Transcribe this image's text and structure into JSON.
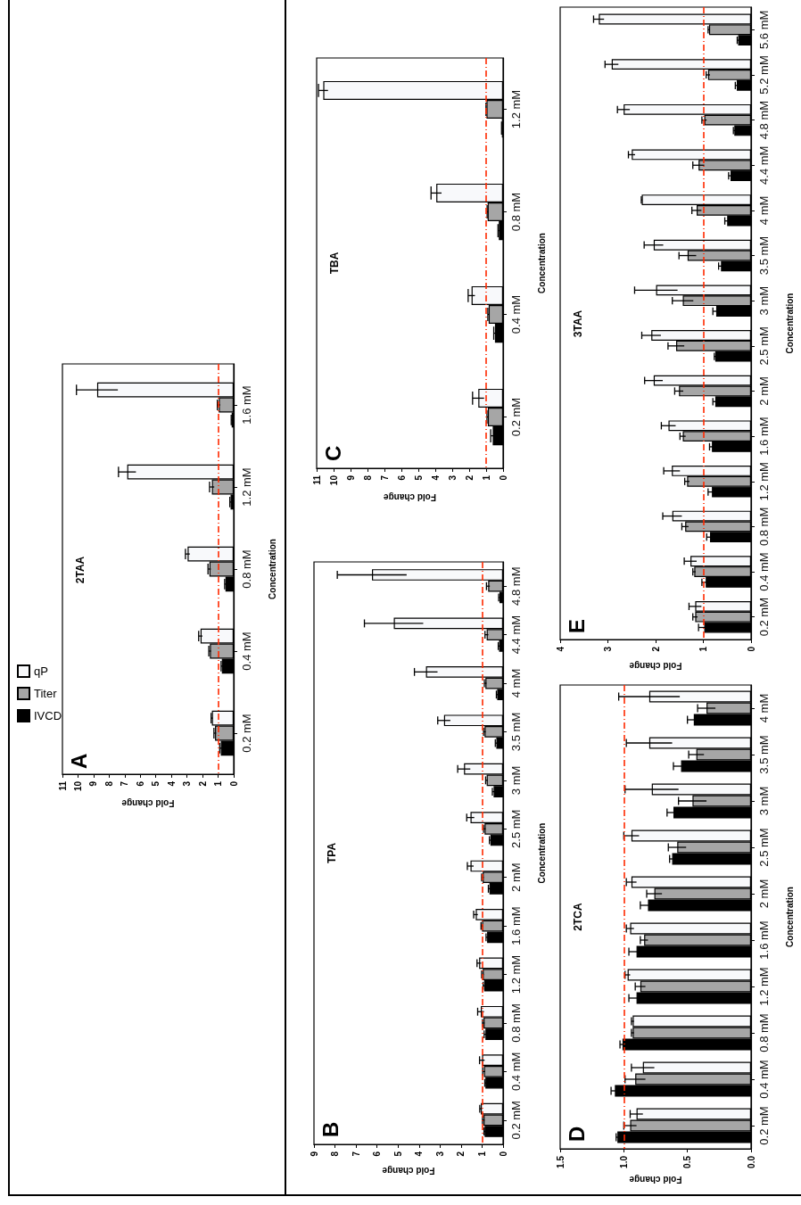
{
  "chart_data": [
    {
      "type": "bar",
      "orientation": "horizontal",
      "title": "A",
      "subtitle": "2TAA",
      "xlabel": "Fold change",
      "ylabel": "Concentration",
      "categories": [
        "1.6 mM",
        "1.2 mM",
        "0.8 mM",
        "0.4 mM",
        "0.2 mM"
      ],
      "series": [
        {
          "name": "qP",
          "color": "#f8f9fb",
          "values": [
            8.77,
            6.84,
            2.96,
            2.13,
            1.4
          ],
          "errors": [
            1.33,
            0.56,
            0.14,
            0.12,
            0.05
          ]
        },
        {
          "name": "Titer",
          "color": "#a6a6a6",
          "values": [
            0.96,
            1.4,
            1.56,
            1.53,
            1.2
          ],
          "errors": [
            0.09,
            0.15,
            0.09,
            0.07,
            0.07
          ]
        },
        {
          "name": "IVCD",
          "color": "#000000",
          "values": [
            0.13,
            0.2,
            0.53,
            0.76,
            0.83
          ],
          "errors": [
            0.03,
            0.05,
            0.05,
            0.05,
            0.07
          ]
        }
      ],
      "xlim": [
        11,
        0
      ],
      "xticks": [
        11,
        10,
        9,
        8,
        7,
        6,
        5,
        4,
        3,
        2,
        1,
        0
      ],
      "ref_lines": [
        {
          "axis": "x",
          "value": 1,
          "color": "#ff2a00",
          "line_style": "dashed"
        }
      ],
      "legend": "left",
      "grid": false
    },
    {
      "type": "bar",
      "orientation": "horizontal",
      "title": "B",
      "subtitle": "TPA",
      "xlabel": "Fold change",
      "ylabel": "Concentration",
      "categories": [
        "4.8 mM",
        "4.4 mM",
        "4 mM",
        "3.5 mM",
        "3 mM",
        "2.5 mM",
        "2 mM",
        "1.6 mM",
        "1.2 mM",
        "0.8 mM",
        "0.4 mM",
        "0.2 mM"
      ],
      "series": [
        {
          "color": "#f8f9fb",
          "values": [
            6.24,
            5.2,
            3.67,
            2.81,
            1.86,
            1.55,
            1.55,
            1.3,
            1.14,
            1.06,
            1.0,
            1.06
          ],
          "errors": [
            1.65,
            1.4,
            0.55,
            0.3,
            0.3,
            0.18,
            0.15,
            0.1,
            0.1,
            0.15,
            0.12,
            0.05
          ]
        },
        {
          "color": "#a6a6a6",
          "values": [
            0.71,
            0.78,
            0.84,
            0.88,
            0.78,
            0.88,
            0.97,
            1.0,
            0.97,
            0.93,
            0.91,
            0.93
          ],
          "errors": [
            0.08,
            0.08,
            0.05,
            0.05,
            0.05,
            0.05,
            0.05,
            0.05,
            0.05,
            0.05,
            0.06,
            0.05
          ]
        },
        {
          "color": "#000000",
          "values": [
            0.17,
            0.19,
            0.28,
            0.32,
            0.45,
            0.6,
            0.65,
            0.76,
            0.9,
            0.84,
            0.84,
            0.88
          ],
          "errors": [
            0.04,
            0.04,
            0.04,
            0.05,
            0.06,
            0.05,
            0.05,
            0.05,
            0.05,
            0.06,
            0.03,
            0.03
          ]
        }
      ],
      "xlim": [
        9,
        0
      ],
      "xticks": [
        9,
        8,
        7,
        6,
        5,
        4,
        3,
        2,
        1,
        0
      ],
      "ref_lines": [
        {
          "axis": "x",
          "value": 1,
          "color": "#ff2a00",
          "line_style": "dashed"
        }
      ],
      "grid": false
    },
    {
      "type": "bar",
      "orientation": "horizontal",
      "title": "C",
      "subtitle": "TBA",
      "xlabel": "Fold change",
      "ylabel": "Concentration",
      "categories": [
        "1.2 mM",
        "0.8 mM",
        "0.4 mM",
        "0.2 mM"
      ],
      "series": [
        {
          "color": "#f8f9fb",
          "values": [
            10.61,
            3.94,
            1.86,
            1.46
          ],
          "errors": [
            0.28,
            0.31,
            0.2,
            0.34
          ]
        },
        {
          "color": "#a6a6a6",
          "values": [
            0.98,
            0.91,
            0.85,
            0.9
          ],
          "errors": [
            0.03,
            0.03,
            0.05,
            0.05
          ]
        },
        {
          "color": "#000000",
          "values": [
            0.07,
            0.25,
            0.48,
            0.61
          ],
          "errors": [
            0.02,
            0.05,
            0.07,
            0.12
          ]
        }
      ],
      "xlim": [
        11,
        0
      ],
      "xticks": [
        11,
        10,
        9,
        8,
        7,
        6,
        5,
        4,
        3,
        2,
        1,
        0
      ],
      "ref_lines": [
        {
          "axis": "x",
          "value": 1,
          "color": "#ff2a00",
          "line_style": "dashed"
        }
      ],
      "grid": false
    },
    {
      "type": "bar",
      "orientation": "horizontal",
      "title": "D",
      "subtitle": "2TCA",
      "xlabel": "Fold change",
      "ylabel": "Concentration",
      "categories": [
        "4 mM",
        "3.5 mM",
        "3 mM",
        "2.5 mM",
        "2 mM",
        "1.6 mM",
        "1.2 mM",
        "0.8 mM",
        "0.4 mM",
        "0.2 mM"
      ],
      "series": [
        {
          "color": "#f8f9fb",
          "values": [
            0.8,
            0.8,
            0.78,
            0.94,
            0.94,
            0.95,
            0.97,
            0.93,
            0.85,
            0.9
          ],
          "errors": [
            0.24,
            0.18,
            0.21,
            0.06,
            0.04,
            0.03,
            0.02,
            0.01,
            0.09,
            0.05
          ]
        },
        {
          "color": "#a6a6a6",
          "values": [
            0.35,
            0.43,
            0.46,
            0.58,
            0.76,
            0.84,
            0.87,
            0.93,
            0.91,
            0.95
          ],
          "errors": [
            0.07,
            0.06,
            0.11,
            0.07,
            0.06,
            0.03,
            0.04,
            0.01,
            0.08,
            0.05
          ]
        },
        {
          "color": "#000000",
          "values": [
            0.45,
            0.55,
            0.61,
            0.62,
            0.81,
            0.9,
            0.9,
            1.01,
            1.07,
            1.05
          ],
          "errors": [
            0.05,
            0.06,
            0.05,
            0.02,
            0.06,
            0.06,
            0.06,
            0.02,
            0.03,
            0.01
          ]
        }
      ],
      "xlim": [
        1.5,
        0
      ],
      "xticks": [
        {
          "value": 1.5,
          "label": "1.5"
        },
        {
          "value": 1,
          "label": "1.0"
        },
        {
          "value": 0.5,
          "label": "0.5"
        },
        {
          "value": 0,
          "label": "0.0"
        }
      ],
      "ref_lines": [
        {
          "axis": "x",
          "value": 1,
          "color": "#ff2a00",
          "line_style": "dashed"
        }
      ],
      "grid": false
    },
    {
      "type": "bar",
      "orientation": "horizontal",
      "title": "E",
      "subtitle": "3TAA",
      "xlabel": "Fold change",
      "ylabel": "Concentration",
      "categories": [
        "5.6 mM",
        "5.2 mM",
        "4.8 mM",
        "4.4 mM",
        "4 mM",
        "3.5 mM",
        "3 mM",
        "2.5 mM",
        "2 mM",
        "1.6 mM",
        "1.2 mM",
        "0.8 mM",
        "0.4 mM",
        "0.2 mM"
      ],
      "series": [
        {
          "color": "#f8f9fb",
          "values": [
            3.19,
            2.92,
            2.67,
            2.5,
            2.29,
            2.04,
            1.99,
            2.09,
            2.04,
            1.73,
            1.66,
            1.65,
            1.27,
            1.17
          ],
          "errors": [
            0.11,
            0.14,
            0.13,
            0.07,
            0.01,
            0.2,
            0.45,
            0.2,
            0.19,
            0.15,
            0.17,
            0.2,
            0.13,
            0.13
          ]
        },
        {
          "color": "#a6a6a6",
          "values": [
            0.88,
            0.9,
            0.98,
            1.1,
            1.14,
            1.33,
            1.43,
            1.57,
            1.51,
            1.43,
            1.34,
            1.38,
            1.19,
            1.17
          ],
          "errors": [
            0.02,
            0.04,
            0.05,
            0.12,
            0.1,
            0.18,
            0.22,
            0.17,
            0.09,
            0.06,
            0.05,
            0.07,
            0.03,
            0.05
          ]
        },
        {
          "color": "#000000",
          "values": [
            0.27,
            0.3,
            0.35,
            0.43,
            0.5,
            0.63,
            0.73,
            0.75,
            0.75,
            0.82,
            0.82,
            0.86,
            0.95,
            0.98
          ],
          "errors": [
            0.02,
            0.03,
            0.02,
            0.04,
            0.05,
            0.05,
            0.07,
            0.02,
            0.05,
            0.05,
            0.08,
            0.07,
            0.08,
            0.12
          ]
        }
      ],
      "xlim": [
        4,
        0
      ],
      "xticks": [
        4,
        3,
        2,
        1,
        0
      ],
      "ref_lines": [
        {
          "axis": "x",
          "value": 1,
          "color": "#ff2a00",
          "line_style": "dashed"
        }
      ],
      "grid": false
    }
  ]
}
